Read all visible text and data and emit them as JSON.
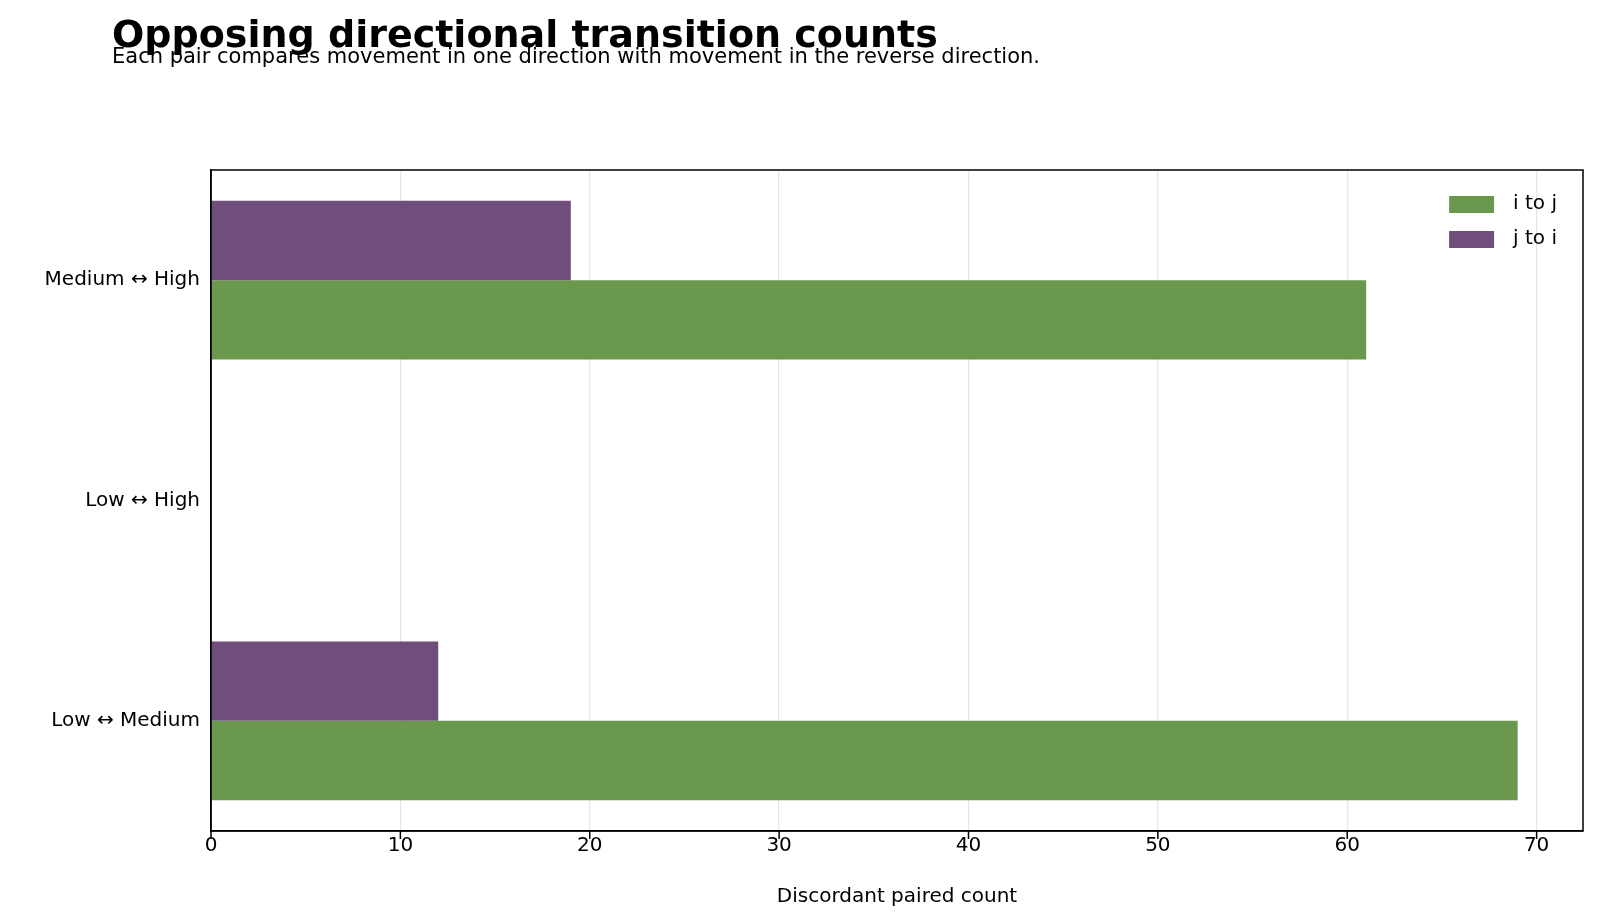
{
  "chart_data": {
    "type": "bar",
    "orientation": "horizontal",
    "title": "Opposing directional transition counts",
    "subtitle": "Each pair compares movement in one direction with movement in the reverse direction.",
    "xlabel": "Discordant paired count",
    "categories": [
      "Medium ↔ High",
      "Low ↔ High",
      "Low ↔ Medium"
    ],
    "series": [
      {
        "name": "i to j",
        "color": "#6a994e",
        "values": [
          61,
          0,
          69
        ]
      },
      {
        "name": "j to i",
        "color": "#6f4e7c",
        "values": [
          19,
          0,
          12
        ]
      }
    ],
    "xlim": [
      0,
      72.45
    ],
    "xticks": [
      0,
      10,
      20,
      30,
      40,
      50,
      60,
      70
    ],
    "grid": "x",
    "legend": "top right"
  }
}
